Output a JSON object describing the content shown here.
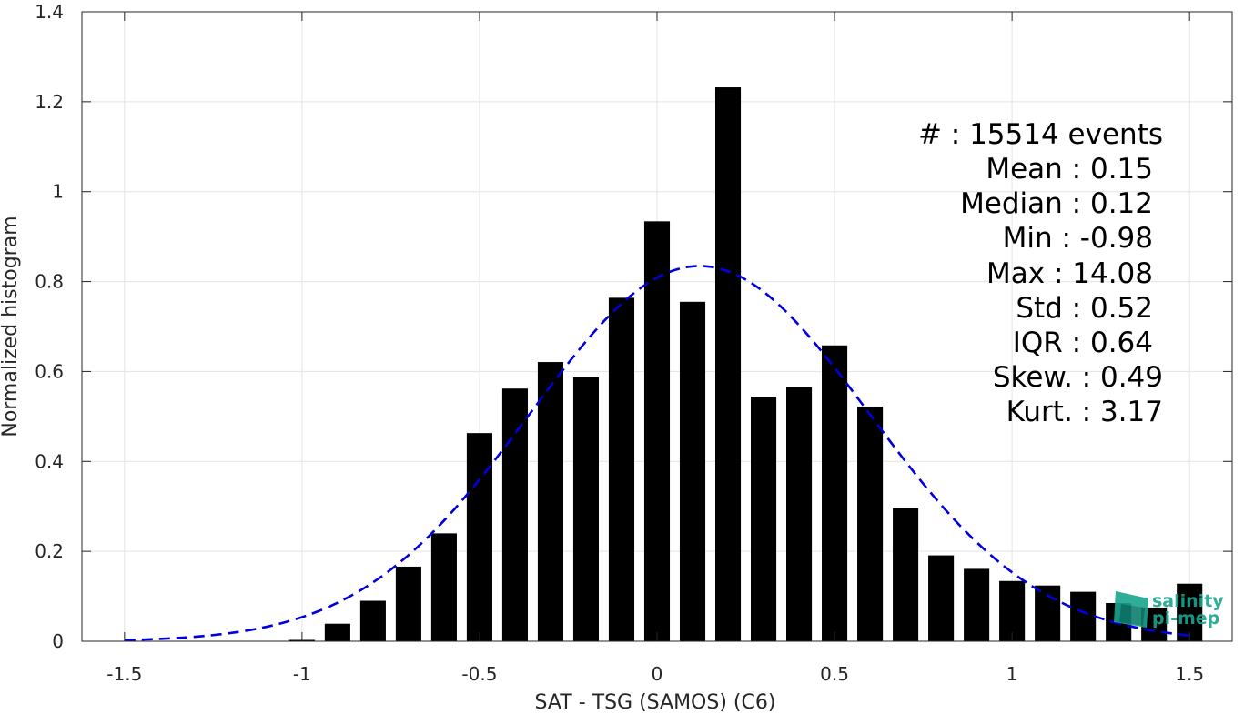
{
  "chart_data": {
    "type": "bar",
    "xlabel": "SAT - TSG (SAMOS) (C6)",
    "ylabel": "Normalized histogram",
    "xlim": [
      -1.62,
      1.62
    ],
    "ylim": [
      0,
      1.4
    ],
    "grid": true,
    "x_ticks": [
      -1.5,
      -1,
      -0.5,
      0,
      0.5,
      1,
      1.5
    ],
    "x_tick_labels": [
      "-1.5",
      "-1",
      "-0.5",
      "0",
      "0.5",
      "1",
      "1.5"
    ],
    "y_ticks": [
      0,
      0.2,
      0.4,
      0.6,
      0.8,
      1,
      1.2,
      1.4
    ],
    "y_tick_labels": [
      "0",
      "0.2",
      "0.4",
      "0.6",
      "0.8",
      "1",
      "1.2",
      "1.4"
    ],
    "bar_width": 0.072,
    "x": [
      -1.0,
      -0.9,
      -0.8,
      -0.7,
      -0.6,
      -0.5,
      -0.4,
      -0.3,
      -0.2,
      -0.1,
      0.0,
      0.1,
      0.2,
      0.3,
      0.4,
      0.5,
      0.6,
      0.7,
      0.8,
      0.9,
      1.0,
      1.1,
      1.2,
      1.3,
      1.4,
      1.5
    ],
    "values": [
      0.003,
      0.039,
      0.09,
      0.166,
      0.24,
      0.463,
      0.562,
      0.621,
      0.587,
      0.764,
      0.934,
      0.755,
      1.232,
      0.544,
      0.565,
      0.658,
      0.522,
      0.296,
      0.191,
      0.161,
      0.134,
      0.124,
      0.11,
      0.085,
      0.075,
      0.128
    ],
    "bar_color": "#000000",
    "fit_curve": {
      "type": "normal",
      "mean": 0.12,
      "std": 0.478,
      "x_range": [
        -1.5,
        1.5
      ],
      "color": "#0000dd",
      "style": "dashed"
    }
  },
  "stats": [
    {
      "label": "#  : 15514 events"
    },
    {
      "label": "Mean : 0.15"
    },
    {
      "label": "Median : 0.12"
    },
    {
      "label": "Min : -0.98"
    },
    {
      "label": "Max : 14.08"
    },
    {
      "label": "Std : 0.52"
    },
    {
      "label": "IQR : 0.64"
    },
    {
      "label": "Skew. : 0.49"
    },
    {
      "label": "Kurt. : 3.17"
    }
  ],
  "logo": {
    "line1": "salinity",
    "line2": "pi-mep",
    "color": "#1aa58f"
  }
}
